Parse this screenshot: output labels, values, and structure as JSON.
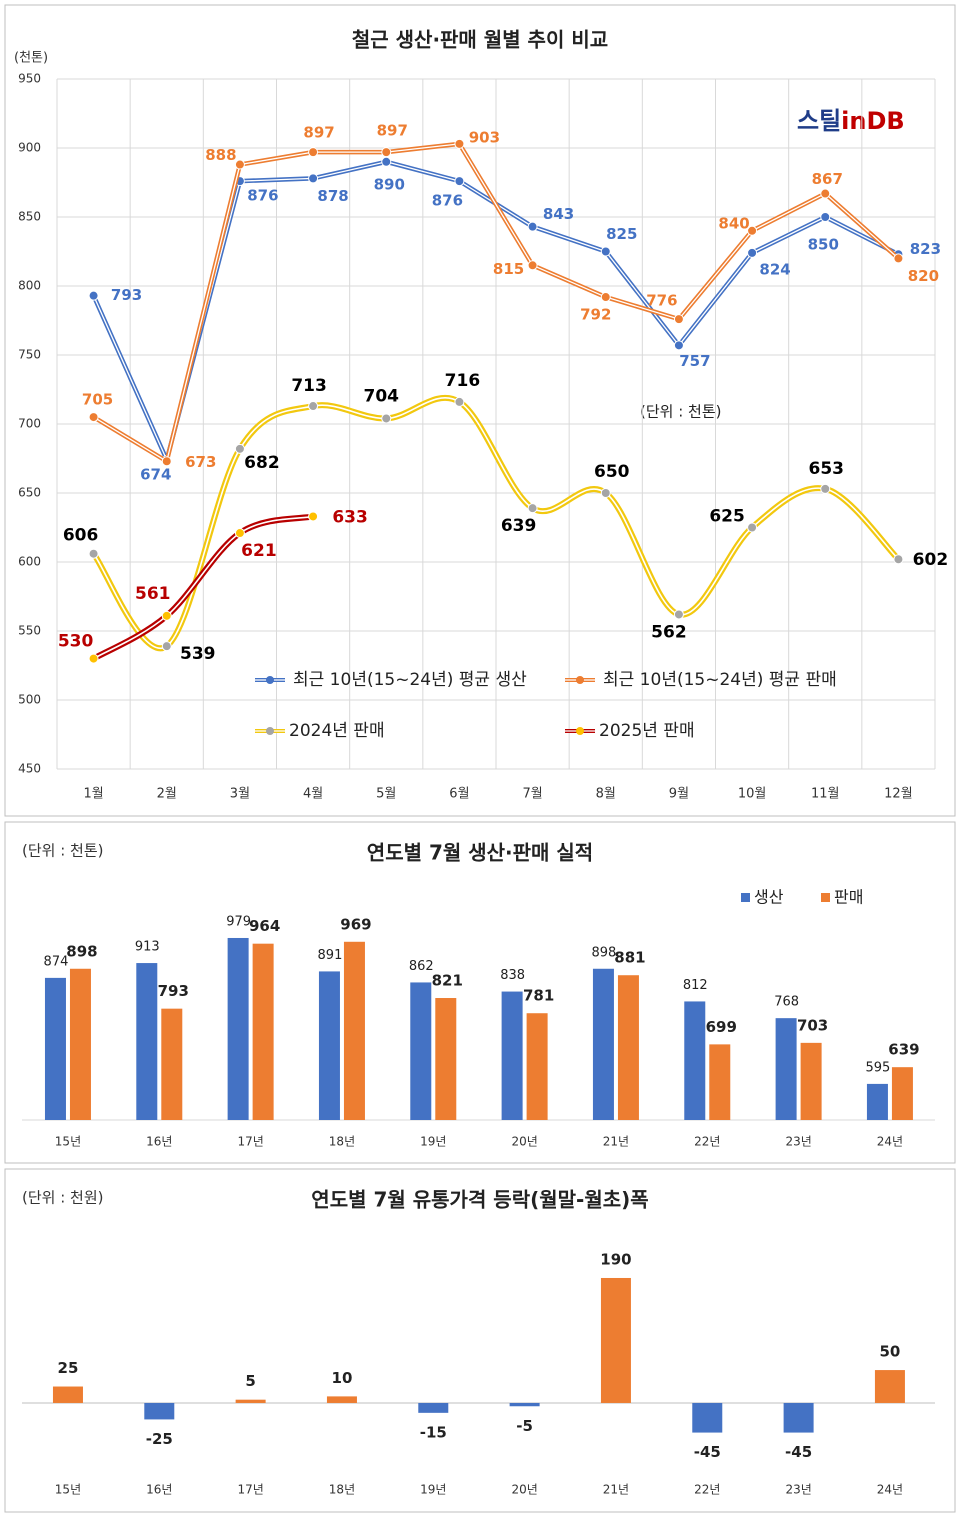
{
  "chart_data": [
    {
      "type": "line",
      "title": "철근 생산·판매 월별 추이 비교",
      "unit_label": "(천톤)",
      "annotation": "(단위 : 천톤)",
      "logo": [
        "스틸",
        "in",
        "DB"
      ],
      "categories": [
        "1월",
        "2월",
        "3월",
        "4월",
        "5월",
        "6월",
        "7월",
        "8월",
        "9월",
        "10월",
        "11월",
        "12월"
      ],
      "series": [
        {
          "name": "최근 10년(15~24년) 평균 생산",
          "color": "#4472c4",
          "marker_color": "#4472c4",
          "label_color": "#4472c4",
          "smooth": false,
          "values": [
            793,
            674,
            876,
            878,
            890,
            876,
            843,
            825,
            757,
            824,
            850,
            823
          ]
        },
        {
          "name": "최근 10년(15~24년) 평균 판매",
          "color": "#ed7d31",
          "marker_color": "#ed7d31",
          "label_color": "#ed7d31",
          "smooth": false,
          "values": [
            705,
            673,
            888,
            897,
            897,
            903,
            815,
            792,
            776,
            840,
            867,
            820
          ]
        },
        {
          "name": "2024년 판매",
          "color": "#f2c80f",
          "marker_color": "#a5a5a5",
          "label_color": "#000000",
          "smooth": true,
          "values": [
            606,
            539,
            682,
            713,
            704,
            716,
            639,
            650,
            562,
            625,
            653,
            602
          ]
        },
        {
          "name": "2025년 판매",
          "color": "#b80000",
          "marker_color": "#ffc000",
          "label_color": "#b80000",
          "smooth": true,
          "values": [
            530,
            561,
            621,
            633,
            null,
            null,
            null,
            null,
            null,
            null,
            null,
            null
          ]
        }
      ],
      "ylim": [
        450,
        950
      ],
      "yticks": [
        450,
        500,
        550,
        600,
        650,
        700,
        750,
        800,
        850,
        900,
        950
      ],
      "grid": true
    },
    {
      "type": "bar",
      "title": "연도별 7월 생산·판매 실적",
      "unit": "(단위 : 천톤)",
      "categories": [
        "15년",
        "16년",
        "17년",
        "18년",
        "19년",
        "20년",
        "21년",
        "22년",
        "23년",
        "24년"
      ],
      "series": [
        {
          "name": "생산",
          "color": "#4472c4",
          "values": [
            874,
            913,
            979,
            891,
            862,
            838,
            898,
            812,
            768,
            595
          ]
        },
        {
          "name": "판매",
          "color": "#ed7d31",
          "values": [
            898,
            793,
            964,
            969,
            821,
            781,
            881,
            699,
            703,
            639
          ]
        }
      ],
      "ylim": [
        500,
        1000
      ]
    },
    {
      "type": "bar",
      "title": "연도별 7월 유통가격 등락(월말-월초)폭",
      "unit": "(단위 : 천원)",
      "categories": [
        "15년",
        "16년",
        "17년",
        "18년",
        "19년",
        "20년",
        "21년",
        "22년",
        "23년",
        "24년"
      ],
      "values": [
        25,
        -25,
        5,
        10,
        -15,
        -5,
        190,
        -45,
        -45,
        50
      ],
      "positive_color": "#ed7d31",
      "negative_color": "#4472c4",
      "ylim": [
        -80,
        200
      ]
    }
  ]
}
